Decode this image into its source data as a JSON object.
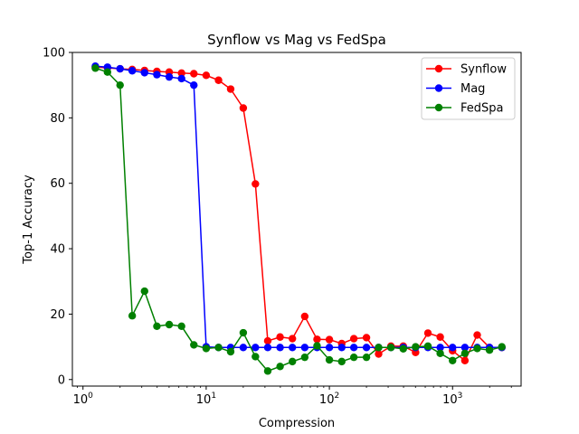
{
  "chart_data": {
    "type": "line",
    "title": "Synflow vs Mag vs FedSpa",
    "xlabel": "Compression",
    "ylabel": "Top-1 Accuracy",
    "xscale": "log",
    "xlim": [
      0.82,
      3600
    ],
    "ylim": [
      -2,
      100
    ],
    "xticks": [
      {
        "value": 1,
        "base": "10",
        "exp": "0"
      },
      {
        "value": 10,
        "base": "10",
        "exp": "1"
      },
      {
        "value": 100,
        "base": "10",
        "exp": "2"
      },
      {
        "value": 1000,
        "base": "10",
        "exp": "3"
      }
    ],
    "yticks": [
      0,
      20,
      40,
      60,
      80,
      100
    ],
    "legend_position": "top-right",
    "grid": false,
    "x": [
      1.26,
      1.58,
      2.0,
      2.51,
      3.16,
      3.98,
      5.01,
      6.31,
      7.94,
      10,
      12.6,
      15.8,
      20,
      25.1,
      31.6,
      39.8,
      50.1,
      63.1,
      79.4,
      100,
      126,
      158,
      200,
      251,
      316,
      398,
      501,
      631,
      794,
      1000,
      1259,
      1585,
      1995,
      2512
    ],
    "series": [
      {
        "name": "Synflow",
        "color": "#ff0000",
        "values": [
          95.5,
          95.3,
          95.0,
          94.8,
          94.5,
          94.2,
          94.0,
          93.7,
          93.5,
          93.0,
          91.5,
          88.8,
          83.0,
          59.8,
          11.8,
          13.0,
          12.5,
          19.3,
          12.3,
          12.2,
          11.0,
          12.5,
          12.8,
          7.8,
          10.2,
          10.2,
          8.3,
          14.2,
          13.0,
          8.8,
          5.8,
          13.6,
          9.8,
          9.8
        ]
      },
      {
        "name": "Mag",
        "color": "#0000ff",
        "values": [
          95.8,
          95.5,
          95.0,
          94.4,
          93.8,
          93.2,
          92.5,
          92.0,
          90.0,
          10.0,
          9.8,
          9.8,
          9.8,
          9.8,
          9.8,
          9.8,
          9.8,
          9.8,
          9.8,
          9.8,
          9.8,
          9.8,
          9.8,
          9.8,
          9.8,
          9.8,
          9.8,
          9.8,
          9.8,
          9.8,
          9.8,
          9.8,
          9.8,
          9.8
        ]
      },
      {
        "name": "FedSpa",
        "color": "#008000",
        "values": [
          95.2,
          94.0,
          90.0,
          19.5,
          27.0,
          16.3,
          16.8,
          16.3,
          10.6,
          9.5,
          9.8,
          8.5,
          14.3,
          7.0,
          2.6,
          4.0,
          5.5,
          6.8,
          10.3,
          6.0,
          5.5,
          6.8,
          6.8,
          9.8,
          9.8,
          9.4,
          10.0,
          10.2,
          8.0,
          5.8,
          8.0,
          9.5,
          9.0,
          10.0
        ]
      }
    ]
  }
}
